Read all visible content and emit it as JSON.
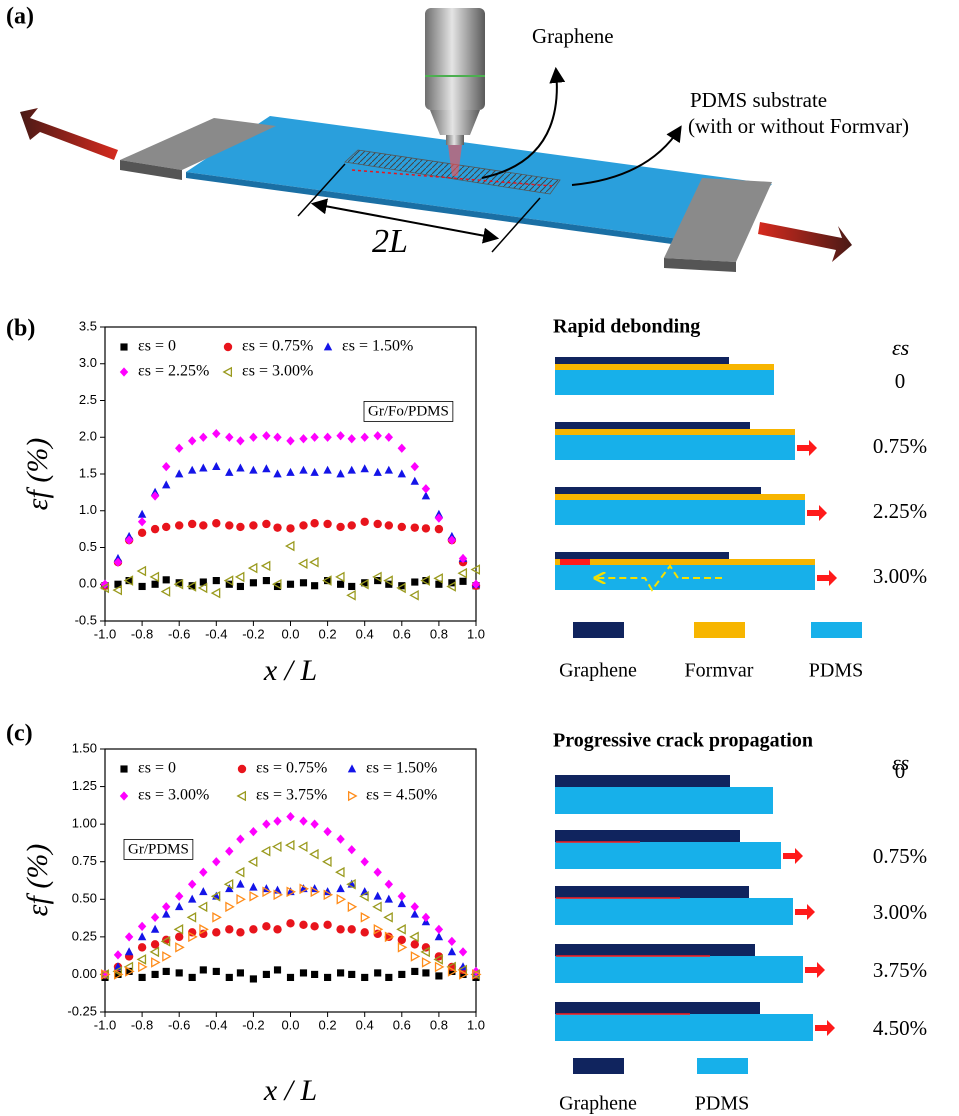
{
  "panel_a": {
    "label": "(a)",
    "graphene": "Graphene",
    "substrate": "PDMS substrate",
    "substrate_note": "(with or without Formvar)",
    "length": "2L"
  },
  "chart_data": [
    {
      "type": "scatter",
      "panel": "(b)",
      "sample": "Gr/Fo/PDMS",
      "xlabel": "x / L",
      "ylabel": "εf (%)",
      "x": [
        -1,
        -0.93,
        -0.87,
        -0.8,
        -0.73,
        -0.67,
        -0.6,
        -0.53,
        -0.47,
        -0.4,
        -0.33,
        -0.27,
        -0.2,
        -0.13,
        -0.07,
        0,
        0.07,
        0.13,
        0.2,
        0.27,
        0.33,
        0.4,
        0.47,
        0.53,
        0.6,
        0.67,
        0.73,
        0.8,
        0.87,
        0.93,
        1
      ],
      "xlim": [
        -1,
        1
      ],
      "xticks": [
        {
          "value": -1,
          "label": "-1.0"
        },
        -0.8,
        -0.6,
        -0.4,
        -0.2,
        {
          "value": 0,
          "label": "0.0"
        },
        0.2,
        0.4,
        0.6,
        0.8,
        {
          "value": 1,
          "label": "1.0"
        }
      ],
      "ylim": [
        -0.5,
        3.5
      ],
      "yticks": [
        {
          "value": -0.5,
          "label": "-0.5"
        },
        {
          "value": 0,
          "label": "0.0"
        },
        0.5,
        {
          "value": 1,
          "label": "1.0"
        },
        1.5,
        {
          "value": 2,
          "label": "2.0"
        },
        2.5,
        {
          "value": 3,
          "label": "3.0"
        },
        3.5
      ],
      "series": [
        {
          "name": "εs = 0",
          "color": "#000000",
          "marker": "square",
          "values": [
            -0.02,
            0.0,
            0.05,
            -0.03,
            0.0,
            0.06,
            0.02,
            -0.02,
            0.03,
            0.05,
            0.0,
            -0.03,
            0.02,
            0.05,
            -0.03,
            0.0,
            0.02,
            -0.02,
            0.05,
            0.0,
            -0.03,
            0.02,
            0.05,
            0.0,
            -0.02,
            0.03,
            0.05,
            0.0,
            0.02,
            0.04,
            -0.02
          ]
        },
        {
          "name": "εs = 0.75%",
          "color": "#e8141c",
          "marker": "circle",
          "values": [
            -0.02,
            0.3,
            0.6,
            0.7,
            0.75,
            0.78,
            0.8,
            0.82,
            0.8,
            0.83,
            0.8,
            0.78,
            0.8,
            0.82,
            0.77,
            0.76,
            0.8,
            0.83,
            0.82,
            0.78,
            0.8,
            0.85,
            0.82,
            0.8,
            0.78,
            0.77,
            0.76,
            0.75,
            0.6,
            0.3,
            -0.02
          ]
        },
        {
          "name": "εs = 1.50%",
          "color": "#1414e8",
          "marker": "up",
          "values": [
            0.0,
            0.35,
            0.65,
            0.95,
            1.25,
            1.35,
            1.5,
            1.55,
            1.58,
            1.6,
            1.52,
            1.58,
            1.55,
            1.57,
            1.5,
            1.52,
            1.55,
            1.52,
            1.55,
            1.5,
            1.55,
            1.57,
            1.52,
            1.55,
            1.5,
            1.4,
            1.2,
            0.95,
            0.65,
            0.35,
            0.0
          ]
        },
        {
          "name": "εs = 2.25%",
          "color": "#ff00ff",
          "marker": "diamond",
          "values": [
            0.0,
            0.3,
            0.6,
            0.85,
            1.2,
            1.6,
            1.85,
            1.95,
            2.0,
            2.05,
            2.0,
            1.95,
            2.0,
            2.02,
            2.0,
            1.95,
            1.98,
            2.0,
            2.0,
            2.02,
            1.98,
            2.0,
            2.02,
            2.0,
            1.85,
            1.6,
            1.3,
            0.9,
            0.6,
            0.35,
            0.0
          ]
        },
        {
          "name": "εs = 3.00%",
          "color": "#9a9a1e",
          "marker": "left",
          "values": [
            -0.05,
            -0.08,
            0.05,
            0.18,
            0.1,
            -0.1,
            0.0,
            -0.03,
            -0.05,
            -0.12,
            0.05,
            0.1,
            0.22,
            0.25,
            0.0,
            0.52,
            0.28,
            0.3,
            0.05,
            0.1,
            -0.15,
            0.0,
            0.1,
            0.05,
            -0.05,
            -0.15,
            0.05,
            0.08,
            -0.03,
            0.15,
            0.2
          ]
        }
      ]
    },
    {
      "type": "scatter",
      "panel": "(c)",
      "sample": "Gr/PDMS",
      "xlabel": "x / L",
      "ylabel": "εf (%)",
      "x": [
        -1,
        -0.93,
        -0.87,
        -0.8,
        -0.73,
        -0.67,
        -0.6,
        -0.53,
        -0.47,
        -0.4,
        -0.33,
        -0.27,
        -0.2,
        -0.13,
        -0.07,
        0,
        0.07,
        0.13,
        0.2,
        0.27,
        0.33,
        0.4,
        0.47,
        0.53,
        0.6,
        0.67,
        0.73,
        0.8,
        0.87,
        0.93,
        1
      ],
      "xlim": [
        -1,
        1
      ],
      "xticks": [
        {
          "value": -1,
          "label": "-1.0"
        },
        -0.8,
        -0.6,
        -0.4,
        -0.2,
        {
          "value": 0,
          "label": "0.0"
        },
        0.2,
        0.4,
        0.6,
        0.8,
        {
          "value": 1,
          "label": "1.0"
        }
      ],
      "ylim": [
        -0.25,
        1.5
      ],
      "yticks": [
        -0.25,
        {
          "value": 0,
          "label": "0.00"
        },
        0.25,
        {
          "value": 0.5,
          "label": "0.50"
        },
        0.75,
        {
          "value": 1,
          "label": "1.00"
        },
        1.25,
        {
          "value": 1.5,
          "label": "1.50"
        }
      ],
      "series": [
        {
          "name": "εs = 0",
          "color": "#000000",
          "marker": "square",
          "values": [
            -0.02,
            0.0,
            0.02,
            -0.02,
            0.0,
            0.02,
            0.01,
            -0.02,
            0.03,
            0.02,
            -0.02,
            0.01,
            -0.03,
            0.0,
            0.03,
            -0.02,
            0.01,
            0.0,
            -0.02,
            0.01,
            0.0,
            -0.02,
            0.01,
            -0.02,
            0.0,
            0.02,
            0.01,
            -0.01,
            0.02,
            0.0,
            -0.02
          ]
        },
        {
          "name": "εs = 0.75%",
          "color": "#e8141c",
          "marker": "circle",
          "values": [
            0.0,
            0.05,
            0.12,
            0.18,
            0.2,
            0.23,
            0.25,
            0.28,
            0.27,
            0.28,
            0.3,
            0.28,
            0.3,
            0.32,
            0.3,
            0.34,
            0.33,
            0.32,
            0.33,
            0.3,
            0.3,
            0.28,
            0.27,
            0.25,
            0.23,
            0.2,
            0.18,
            0.12,
            0.05,
            0.03,
            0.0
          ]
        },
        {
          "name": "εs = 1.50%",
          "color": "#1414e8",
          "marker": "up",
          "values": [
            0.0,
            0.05,
            0.15,
            0.25,
            0.3,
            0.4,
            0.45,
            0.5,
            0.55,
            0.52,
            0.57,
            0.6,
            0.58,
            0.57,
            0.56,
            0.55,
            0.57,
            0.57,
            0.55,
            0.57,
            0.6,
            0.55,
            0.52,
            0.5,
            0.47,
            0.4,
            0.35,
            0.25,
            0.15,
            0.05,
            0.0
          ]
        },
        {
          "name": "εs = 3.00%",
          "color": "#ff00ff",
          "marker": "diamond",
          "values": [
            0.0,
            0.13,
            0.25,
            0.32,
            0.38,
            0.45,
            0.52,
            0.6,
            0.68,
            0.75,
            0.82,
            0.9,
            0.95,
            1.0,
            1.02,
            1.05,
            1.02,
            1.0,
            0.95,
            0.9,
            0.83,
            0.75,
            0.68,
            0.6,
            0.52,
            0.45,
            0.38,
            0.3,
            0.22,
            0.15,
            0.02
          ]
        },
        {
          "name": "εs = 3.75%",
          "color": "#9a9a1e",
          "marker": "left",
          "values": [
            0.0,
            0.02,
            0.05,
            0.1,
            0.15,
            0.22,
            0.3,
            0.38,
            0.45,
            0.52,
            0.6,
            0.68,
            0.75,
            0.82,
            0.85,
            0.86,
            0.85,
            0.8,
            0.75,
            0.68,
            0.6,
            0.52,
            0.45,
            0.38,
            0.3,
            0.25,
            0.15,
            0.1,
            0.05,
            0.03,
            0.0
          ]
        },
        {
          "name": "εs = 4.50%",
          "color": "#ff8c1a",
          "marker": "right",
          "values": [
            0.0,
            0.0,
            0.02,
            0.05,
            0.08,
            0.12,
            0.18,
            0.25,
            0.3,
            0.38,
            0.45,
            0.5,
            0.52,
            0.55,
            0.53,
            0.55,
            0.57,
            0.55,
            0.53,
            0.5,
            0.45,
            0.38,
            0.3,
            0.25,
            0.18,
            0.12,
            0.08,
            0.05,
            0.02,
            0.0,
            0.0
          ]
        }
      ]
    }
  ],
  "diagram_b": {
    "title": "Rapid debonding",
    "strain_label": "εs",
    "rows": [
      "0",
      "0.75%",
      "2.25%",
      "3.00%"
    ],
    "legend": [
      "Graphene",
      "Formvar",
      "PDMS"
    ]
  },
  "diagram_c": {
    "title": "Progressive crack propagation",
    "strain_label": "εs",
    "rows": [
      "0",
      "0.75%",
      "3.00%",
      "3.75%",
      "4.50%"
    ],
    "legend": [
      "Graphene",
      "PDMS"
    ]
  }
}
